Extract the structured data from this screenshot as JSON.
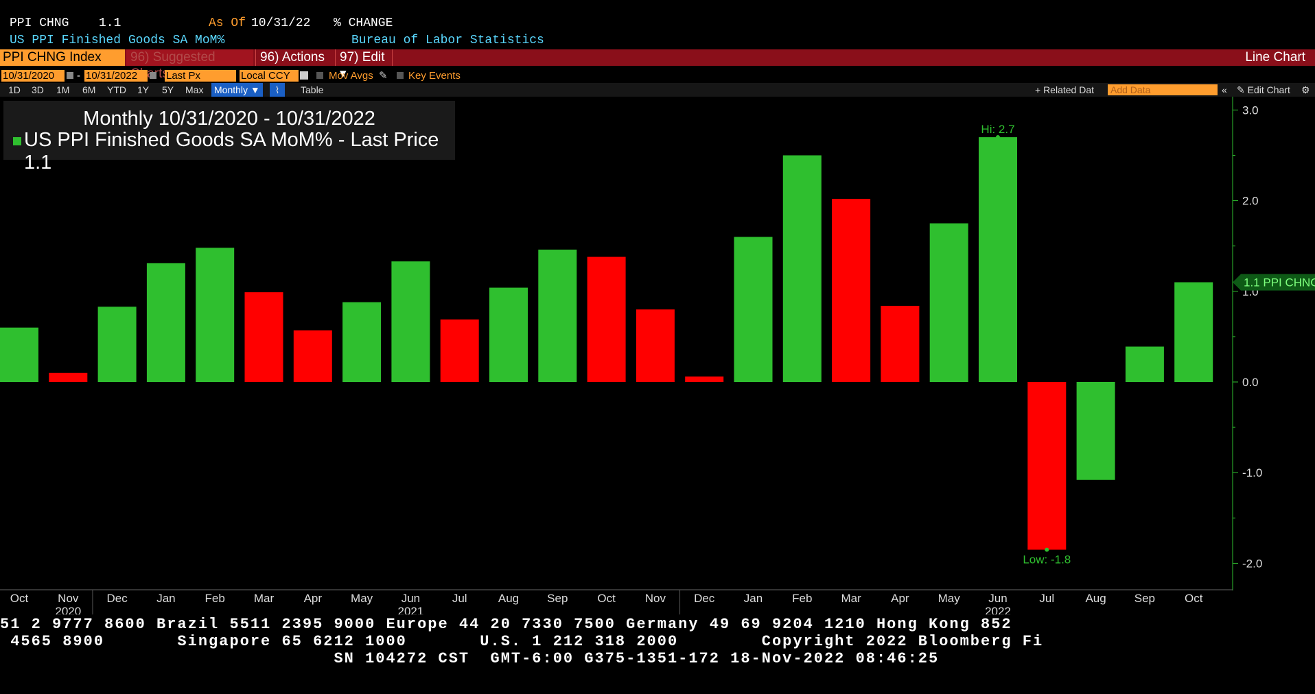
{
  "header": {
    "ticker": "PPI CHNG",
    "value": "1.1",
    "as_of_label": "As Of",
    "as_of_date": "10/31/22",
    "unit": "% CHANGE",
    "series_name": "US PPI Finished Goods SA MoM%",
    "source": "Bureau of Labor Statistics"
  },
  "toolbar": {
    "security": "PPI CHNG Index",
    "suggested": "96) Suggested Charts",
    "actions": "96) Actions ▾",
    "edit": "97) Edit ▾",
    "view_name": "Line Chart"
  },
  "controls": {
    "start_date": "10/31/2020",
    "end_date": "10/31/2022",
    "dash": "-",
    "field": "Last Px",
    "currency": "Local CCY",
    "mov_avgs": "Mov Avgs",
    "key_events": "Key Events",
    "periods": [
      "1D",
      "3D",
      "1M",
      "6M",
      "YTD",
      "1Y",
      "5Y",
      "Max"
    ],
    "frequency": "Monthly ▼",
    "table": "Table",
    "related_data": "+ Related Dat",
    "add_data_placeholder": "Add Data",
    "collapse": "«",
    "edit_chart": "✎ Edit Chart",
    "settings": "⚙"
  },
  "legend": {
    "title": "Monthly 10/31/2020 - 10/31/2022",
    "series": "US PPI Finished Goods SA MoM% - Last Price 1.1"
  },
  "colors": {
    "up": "#2fbf2f",
    "down": "#ff0000",
    "accent": "#ff9d2e",
    "toolbar": "#8a0f1a"
  },
  "chart_data": {
    "type": "bar",
    "title": "Monthly 10/31/2020 - 10/31/2022",
    "categories": [
      "Oct",
      "Nov",
      "Dec",
      "Jan",
      "Feb",
      "Mar",
      "Apr",
      "May",
      "Jun",
      "Jul",
      "Aug",
      "Sep",
      "Oct",
      "Nov",
      "Dec",
      "Jan",
      "Feb",
      "Mar",
      "Apr",
      "May",
      "Jun",
      "Jul",
      "Aug",
      "Sep",
      "Oct"
    ],
    "years": [
      {
        "label": "2020",
        "at": 1
      },
      {
        "label": "2021",
        "at": 8
      },
      {
        "label": "2022",
        "at": 20
      }
    ],
    "year_dividers": [
      2,
      14
    ],
    "series": [
      {
        "name": "US PPI Finished Goods SA MoM%",
        "values": [
          0.6,
          0.1,
          0.83,
          1.31,
          1.48,
          0.99,
          0.57,
          0.88,
          1.33,
          0.69,
          1.04,
          1.46,
          1.38,
          0.8,
          0.06,
          1.6,
          2.5,
          2.02,
          0.84,
          1.75,
          2.7,
          -1.85,
          -1.08,
          0.39,
          1.1
        ],
        "colors": [
          "up",
          "down",
          "up",
          "up",
          "up",
          "down",
          "down",
          "up",
          "up",
          "down",
          "up",
          "up",
          "down",
          "down",
          "down",
          "up",
          "up",
          "down",
          "down",
          "up",
          "up",
          "down",
          "up",
          "up",
          "up"
        ]
      }
    ],
    "ylim": [
      -2.3,
      3.1
    ],
    "yticks": [
      "3.0",
      "2.0",
      "1.0",
      "0.0",
      "-1.0",
      "-2.0"
    ],
    "ytick_values": [
      3.0,
      2.0,
      1.0,
      0.0,
      -1.0,
      -2.0
    ],
    "hi_label": "Hi: 2.7",
    "hi_index": 20,
    "low_label": "Low: -1.8",
    "low_index": 21,
    "last_label": "1.1 PPI CHNG",
    "last_value": 1.1
  },
  "footer": {
    "line1": "51 2 9777 8600 Brazil 5511 2395 9000 Europe 44 20 7330 7500 Germany 49 69 9204 1210 Hong Kong 852",
    "line2": " 4565 8900       Singapore 65 6212 1000       U.S. 1 212 318 2000        Copyright 2022 Bloomberg Fi",
    "line3": "                                SN 104272 CST  GMT-6:00 G375-1351-172 18-Nov-2022 08:46:25"
  }
}
